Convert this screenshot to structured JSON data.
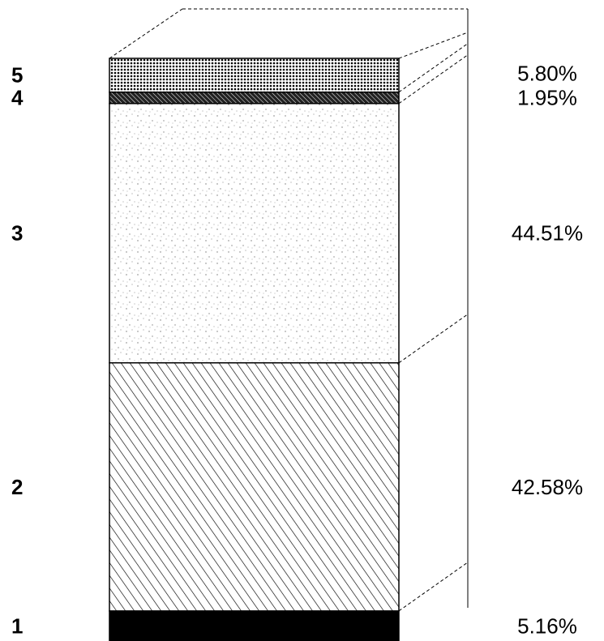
{
  "chart_data": {
    "type": "bar",
    "subtype": "100% stacked single column (3D)",
    "segments": [
      {
        "label": "1",
        "value_label": "5.16%",
        "value": 5.16,
        "pattern": "solid-black"
      },
      {
        "label": "2",
        "value_label": "42.58%",
        "value": 42.58,
        "pattern": "diagonal-hatch"
      },
      {
        "label": "3",
        "value_label": "44.51%",
        "value": 44.51,
        "pattern": "light-stipple"
      },
      {
        "label": "4",
        "value_label": "1.95%",
        "value": 1.95,
        "pattern": "dense-hatch"
      },
      {
        "label": "5",
        "value_label": "5.80%",
        "value": 5.8,
        "pattern": "dotted"
      }
    ],
    "total": 100,
    "colors": {
      "ink": "#000000",
      "background": "#ffffff"
    }
  }
}
